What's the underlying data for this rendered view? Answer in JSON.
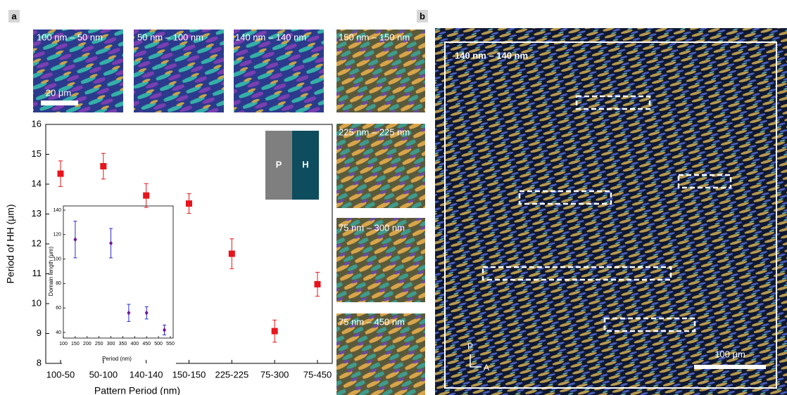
{
  "panel_labels": [
    "a",
    "b"
  ],
  "micrographs": [
    "100 nm – 50 nm",
    "50 nm – 100 nm",
    "140 nm – 140 nm",
    "150 nm – 150 nm",
    "225 nm – 225 nm",
    "75 nm – 300 nm",
    "75 nm – 450 nm"
  ],
  "scale_bar_a": "20 μm",
  "schematic": [
    "P",
    "H"
  ],
  "panel_b": {
    "label": "140 nm – 140 nm",
    "scale_bar": "100 μm",
    "polarizer": "P",
    "analyzer": "A"
  },
  "chart_data": [
    {
      "type": "scatter",
      "x_label": "Pattern Period (nm)",
      "y_label": "Period of HH (μm)",
      "categories": [
        "100-50",
        "50-100",
        "140-140",
        "150-150",
        "225-225",
        "75-300",
        "75-450"
      ],
      "series": [
        {
          "color": "#e8141c",
          "values": [
            14.35,
            14.6,
            13.62,
            13.35,
            11.67,
            9.08,
            10.65
          ],
          "errors": [
            0.43,
            0.43,
            0.4,
            0.33,
            0.5,
            0.37,
            0.4
          ]
        }
      ],
      "ylim": [
        8,
        16
      ],
      "yticks": [
        8,
        9,
        10,
        11,
        12,
        13,
        14,
        15,
        16
      ]
    },
    {
      "type": "scatter",
      "x_label": "Period (nm)",
      "y_label": "Domain length (μm)",
      "x": [
        150,
        300,
        375,
        450,
        525
      ],
      "series": [
        {
          "color": "#6a1b9a",
          "error_color": "#2a2ad0",
          "values": [
            116,
            113,
            56,
            56,
            42
          ],
          "errors": [
            15,
            12,
            7,
            5,
            4
          ]
        }
      ],
      "xlim": [
        100,
        550
      ],
      "xticks": [
        100,
        150,
        200,
        250,
        300,
        350,
        400,
        450,
        500,
        550
      ],
      "ylim": [
        40,
        140
      ],
      "yticks": [
        40,
        60,
        80,
        100,
        120,
        140
      ]
    }
  ]
}
